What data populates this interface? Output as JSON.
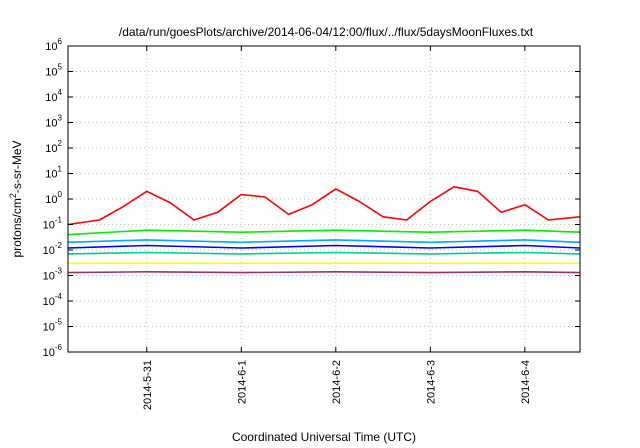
{
  "chart_data": {
    "type": "line",
    "title": "/data/run/goesPlots/archive/2014-06-04/12:00/flux/../flux/5daysMoonFluxes.txt",
    "xlabel": "Coordinated Universal Time (UTC)",
    "ylabel_parts": [
      "protons/cm",
      "2",
      "-s-sr-MeV"
    ],
    "y_scale": "log",
    "ylim": [
      1e-06,
      1000000.0
    ],
    "y_ticks": [
      {
        "base": "10",
        "exp": "-6",
        "value": 1e-06
      },
      {
        "base": "10",
        "exp": "-5",
        "value": 1e-05
      },
      {
        "base": "10",
        "exp": "-4",
        "value": 0.0001
      },
      {
        "base": "10",
        "exp": "-3",
        "value": 0.001
      },
      {
        "base": "10",
        "exp": "-2",
        "value": 0.01
      },
      {
        "base": "10",
        "exp": "-1",
        "value": 0.1
      },
      {
        "base": "10",
        "exp": "0",
        "value": 1
      },
      {
        "base": "10",
        "exp": "1",
        "value": 10
      },
      {
        "base": "10",
        "exp": "2",
        "value": 100
      },
      {
        "base": "10",
        "exp": "3",
        "value": 1000
      },
      {
        "base": "10",
        "exp": "4",
        "value": 10000
      },
      {
        "base": "10",
        "exp": "5",
        "value": 100000
      },
      {
        "base": "10",
        "exp": "6",
        "value": 1000000
      }
    ],
    "xlim": [
      "2014-05-30T04:00",
      "2014-06-04T14:00"
    ],
    "x_ticks": [
      {
        "label": "2014-5-31",
        "value": "2014-05-31T00:00"
      },
      {
        "label": "2014-6-1",
        "value": "2014-06-01T00:00"
      },
      {
        "label": "2014-6-2",
        "value": "2014-06-02T00:00"
      },
      {
        "label": "2014-6-3",
        "value": "2014-06-03T00:00"
      },
      {
        "label": "2014-6-4",
        "value": "2014-06-04T00:00"
      }
    ],
    "grid": true,
    "legend": "none",
    "series": [
      {
        "color": "#ff0000",
        "x": [
          "2014-05-30T04:00",
          "2014-05-30T12:00",
          "2014-05-30T18:00",
          "2014-05-31T00:00",
          "2014-05-31T06:00",
          "2014-05-31T12:00",
          "2014-05-31T18:00",
          "2014-06-01T00:00",
          "2014-06-01T06:00",
          "2014-06-01T12:00",
          "2014-06-01T18:00",
          "2014-06-02T00:00",
          "2014-06-02T06:00",
          "2014-06-02T12:00",
          "2014-06-02T18:00",
          "2014-06-03T00:00",
          "2014-06-03T06:00",
          "2014-06-03T12:00",
          "2014-06-03T18:00",
          "2014-06-04T00:00",
          "2014-06-04T06:00",
          "2014-06-04T14:00"
        ],
        "y": [
          0.1,
          0.15,
          0.5,
          2.0,
          0.7,
          0.15,
          0.3,
          1.5,
          1.2,
          0.25,
          0.6,
          2.5,
          0.8,
          0.2,
          0.15,
          0.8,
          3.0,
          2.0,
          0.3,
          0.6,
          0.15,
          0.2
        ]
      },
      {
        "color": "#00ee00",
        "x": [
          "2014-05-30T04:00",
          "2014-05-31T00:00",
          "2014-06-01T00:00",
          "2014-06-02T00:00",
          "2014-06-03T00:00",
          "2014-06-04T00:00",
          "2014-06-04T14:00"
        ],
        "y": [
          0.04,
          0.06,
          0.05,
          0.06,
          0.05,
          0.06,
          0.05
        ]
      },
      {
        "color": "#00aaff",
        "x": [
          "2014-05-30T04:00",
          "2014-05-31T00:00",
          "2014-06-01T00:00",
          "2014-06-02T00:00",
          "2014-06-03T00:00",
          "2014-06-04T00:00",
          "2014-06-04T14:00"
        ],
        "y": [
          0.02,
          0.025,
          0.02,
          0.025,
          0.02,
          0.025,
          0.02
        ]
      },
      {
        "color": "#0000ff",
        "x": [
          "2014-05-30T04:00",
          "2014-05-31T00:00",
          "2014-06-01T00:00",
          "2014-06-02T00:00",
          "2014-06-03T00:00",
          "2014-06-04T00:00",
          "2014-06-04T14:00"
        ],
        "y": [
          0.012,
          0.015,
          0.012,
          0.015,
          0.012,
          0.015,
          0.012
        ]
      },
      {
        "color": "#00cc99",
        "x": [
          "2014-05-30T04:00",
          "2014-05-31T00:00",
          "2014-06-01T00:00",
          "2014-06-02T00:00",
          "2014-06-03T00:00",
          "2014-06-04T00:00",
          "2014-06-04T14:00"
        ],
        "y": [
          0.007,
          0.008,
          0.007,
          0.008,
          0.007,
          0.008,
          0.007
        ]
      },
      {
        "color": "#ffff00",
        "x": [
          "2014-05-30T04:00",
          "2014-05-31T00:00",
          "2014-06-01T00:00",
          "2014-06-02T00:00",
          "2014-06-03T00:00",
          "2014-06-04T00:00",
          "2014-06-04T14:00"
        ],
        "y": [
          0.003,
          0.003,
          0.003,
          0.003,
          0.003,
          0.003,
          0.003
        ]
      },
      {
        "color": "#993366",
        "x": [
          "2014-05-30T04:00",
          "2014-05-31T00:00",
          "2014-06-01T00:00",
          "2014-06-02T00:00",
          "2014-06-03T00:00",
          "2014-06-04T00:00",
          "2014-06-04T14:00"
        ],
        "y": [
          0.0013,
          0.0014,
          0.0013,
          0.0014,
          0.0013,
          0.0014,
          0.0013
        ]
      }
    ]
  }
}
